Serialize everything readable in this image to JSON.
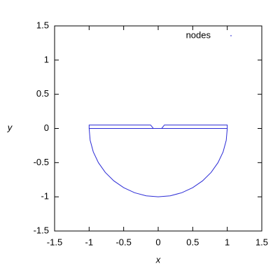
{
  "chart_data": {
    "type": "line",
    "xlabel": "x",
    "ylabel": "y",
    "xlim": [
      -1.5,
      1.5
    ],
    "ylim": [
      -1.5,
      1.5
    ],
    "xticks": [
      -1.5,
      -1,
      -0.5,
      0,
      0.5,
      1,
      1.5
    ],
    "yticks": [
      -1.5,
      -1,
      -0.5,
      0,
      0.5,
      1,
      1.5
    ],
    "grid": false,
    "legend": "top-right",
    "series": [
      {
        "name": "nodes",
        "color": "#2b2bd6",
        "x": [
          -1,
          -0.985,
          -0.94,
          -0.866,
          -0.766,
          -0.643,
          -0.5,
          -0.342,
          -0.174,
          0,
          0.174,
          0.342,
          0.5,
          0.643,
          0.766,
          0.866,
          0.94,
          0.985,
          1,
          1,
          0.09,
          0.05,
          -0.07,
          -0.11,
          -1,
          -1,
          1
        ],
        "values": [
          0,
          -0.174,
          -0.342,
          -0.5,
          -0.643,
          -0.766,
          -0.866,
          -0.94,
          -0.985,
          -1,
          -0.985,
          -0.94,
          -0.866,
          -0.766,
          -0.643,
          -0.5,
          -0.342,
          -0.174,
          0,
          0.05,
          0.05,
          0,
          0,
          0.05,
          0.05,
          0,
          0
        ]
      }
    ]
  }
}
